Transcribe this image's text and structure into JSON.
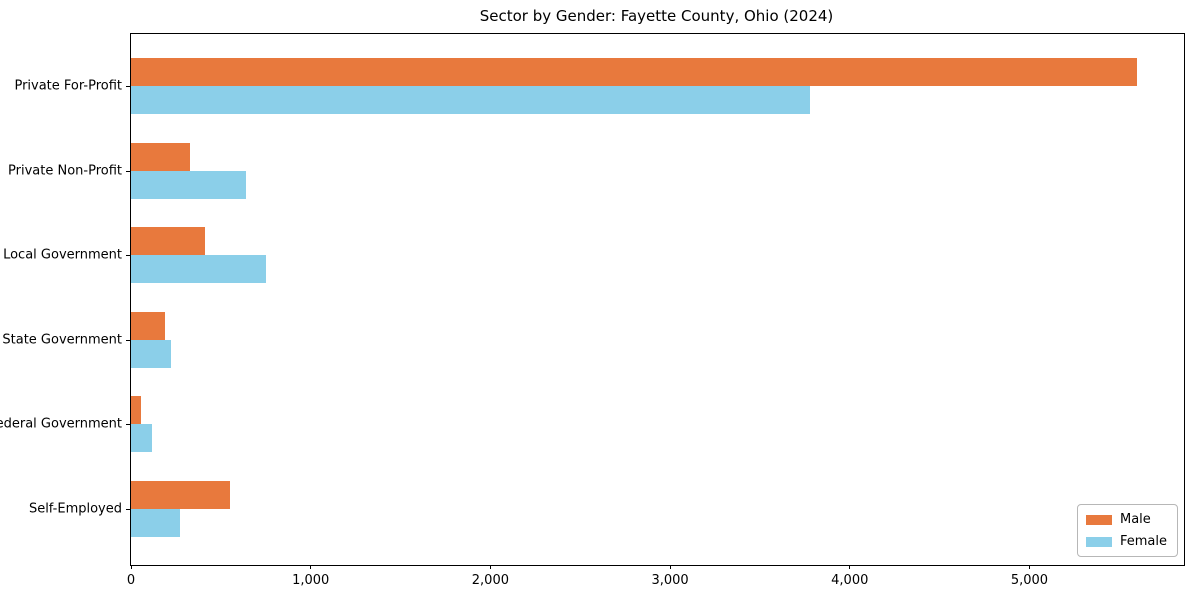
{
  "chart_data": {
    "type": "bar",
    "orientation": "horizontal",
    "title": "Sector by Gender: Fayette County, Ohio (2024)",
    "categories": [
      "Private For-Profit",
      "Private Non-Profit",
      "Local Government",
      "State Government",
      "Federal Government",
      "Self-Employed"
    ],
    "series": [
      {
        "name": "Male",
        "color": "#e8793d",
        "values": [
          5600,
          330,
          410,
          190,
          55,
          550
        ]
      },
      {
        "name": "Female",
        "color": "#8bcfe9",
        "values": [
          3780,
          640,
          750,
          225,
          115,
          270
        ]
      }
    ],
    "xlabel": "",
    "ylabel": "",
    "xlim": [
      0,
      5860
    ],
    "x_ticks": [
      0,
      1000,
      2000,
      3000,
      4000,
      5000
    ],
    "x_tick_labels": [
      "0",
      "1,000",
      "2,000",
      "3,000",
      "4,000",
      "5,000"
    ],
    "legend_position": "lower right",
    "grid": false
  }
}
